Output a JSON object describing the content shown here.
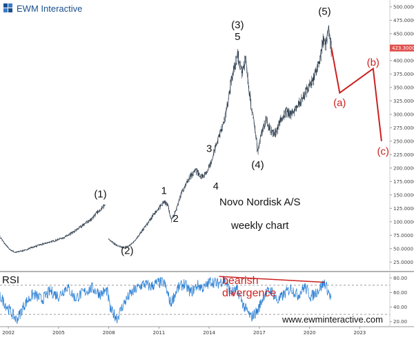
{
  "brand": {
    "name": "EWM Interactive"
  },
  "website": "www.ewminteractive.com",
  "chart_note": {
    "line1": "Novo Nordisk A/S",
    "line2": "weekly chart"
  },
  "colors": {
    "price": "#2f3f4f",
    "rsi": "#2a7fd4",
    "red": "#cc1f1f",
    "tag": "#e0514f",
    "brand": "#1a4f8c"
  },
  "current_price": {
    "value": 423.3,
    "label": "423.3000"
  },
  "chart_data": [
    {
      "type": "line",
      "name": "price",
      "title": "",
      "xlabel": "",
      "ylabel": "",
      "grid": false,
      "x_ticks": [
        "2002",
        "2005",
        "2008",
        "2011",
        "2014",
        "2017",
        "2020",
        "2023"
      ],
      "y_ticks": [
        "25.0000",
        "50.0000",
        "75.0000",
        "100.0000",
        "125.0000",
        "150.0000",
        "175.0000",
        "200.0000",
        "225.0000",
        "250.0000",
        "275.0000",
        "300.0000",
        "325.0000",
        "350.0000",
        "375.0000",
        "400.0000",
        "425.0000",
        "450.0000",
        "475.0000",
        "500.0000"
      ],
      "ylim": [
        10,
        505
      ],
      "xlim": [
        2001.5,
        2024.8
      ],
      "series": [
        {
          "segment": 1,
          "x": [
            2001.5,
            2001.8,
            2002.1,
            2002.4,
            2002.7,
            2003.0,
            2003.4,
            2003.8,
            2004.2,
            2004.6,
            2005.0,
            2005.4,
            2005.8,
            2006.2,
            2006.6,
            2007.0,
            2007.3,
            2007.6,
            2007.8
          ],
          "y": [
            72,
            58,
            48,
            43,
            45,
            47,
            52,
            56,
            60,
            63,
            67,
            72,
            79,
            88,
            97,
            106,
            117,
            126,
            130
          ]
        },
        {
          "segment": 2,
          "x": [
            2008.0,
            2008.3,
            2008.6,
            2008.9,
            2009.2,
            2009.5,
            2009.8,
            2010.1,
            2010.4,
            2010.7,
            2011.0,
            2011.3,
            2011.55,
            2011.75,
            2012.0,
            2012.3,
            2012.6,
            2012.9,
            2013.2,
            2013.5,
            2013.8,
            2014.1,
            2014.4,
            2014.7,
            2015.0,
            2015.2,
            2015.5,
            2015.7,
            2015.95,
            2016.2,
            2016.45,
            2016.65,
            2016.8,
            2016.9,
            2017.1,
            2017.4,
            2017.7,
            2018.0,
            2018.3,
            2018.6,
            2018.9,
            2019.2,
            2019.5,
            2019.8,
            2020.1,
            2020.35,
            2020.6,
            2020.85,
            2021.0,
            2021.15,
            2021.3
          ],
          "y": [
            68,
            60,
            54,
            52,
            55,
            63,
            75,
            88,
            100,
            115,
            125,
            138,
            130,
            102,
            120,
            150,
            170,
            185,
            196,
            185,
            188,
            210,
            240,
            268,
            300,
            340,
            390,
            412,
            380,
            400,
            330,
            288,
            262,
            226,
            262,
            290,
            268,
            265,
            292,
            305,
            300,
            310,
            325,
            342,
            355,
            375,
            400,
            440,
            430,
            458,
            423
          ]
        }
      ],
      "annotations": [
        {
          "text": "(1)",
          "x": 2007.5,
          "y": 145,
          "color": "black"
        },
        {
          "text": "(2)",
          "x": 2009.1,
          "y": 40,
          "color": "black"
        },
        {
          "text": "1",
          "x": 2011.3,
          "y": 152,
          "color": "black"
        },
        {
          "text": "2",
          "x": 2012.0,
          "y": 100,
          "color": "black"
        },
        {
          "text": "3",
          "x": 2014.0,
          "y": 230,
          "color": "black"
        },
        {
          "text": "4",
          "x": 2014.4,
          "y": 160,
          "color": "black"
        },
        {
          "text": "(3)",
          "x": 2015.7,
          "y": 460,
          "color": "black"
        },
        {
          "text": "5",
          "x": 2015.7,
          "y": 438,
          "color": "black"
        },
        {
          "text": "(4)",
          "x": 2016.9,
          "y": 200,
          "color": "black"
        },
        {
          "text": "(5)",
          "x": 2020.9,
          "y": 485,
          "color": "black"
        },
        {
          "text": "(a)",
          "x": 2021.8,
          "y": 315,
          "color": "red"
        },
        {
          "text": "(b)",
          "x": 2023.8,
          "y": 390,
          "color": "red"
        },
        {
          "text": "(c)",
          "x": 2024.4,
          "y": 225,
          "color": "red"
        }
      ],
      "projection": {
        "x": [
          2021.3,
          2021.8,
          2023.8,
          2024.3
        ],
        "y": [
          425,
          340,
          385,
          250
        ]
      }
    },
    {
      "type": "line",
      "name": "RSI",
      "title": "RSI",
      "xlabel": "",
      "ylabel": "",
      "grid": false,
      "y_ticks": [
        "20.00",
        "40.00",
        "60.00",
        "80.00"
      ],
      "ylim": [
        15,
        85
      ],
      "reference_lines": [
        70,
        30
      ],
      "xlim": [
        2001.5,
        2024.8
      ],
      "x": [
        2001.5,
        2002.0,
        2002.5,
        2003.0,
        2003.5,
        2004.0,
        2004.5,
        2005.0,
        2005.5,
        2006.0,
        2006.5,
        2007.0,
        2007.5,
        2007.9,
        2008.1,
        2008.5,
        2008.9,
        2009.3,
        2009.7,
        2010.1,
        2010.5,
        2010.9,
        2011.3,
        2011.7,
        2012.1,
        2012.5,
        2012.9,
        2013.3,
        2013.7,
        2014.1,
        2014.5,
        2014.9,
        2015.3,
        2015.7,
        2016.1,
        2016.5,
        2016.9,
        2017.3,
        2017.7,
        2018.1,
        2018.5,
        2018.9,
        2019.3,
        2019.7,
        2020.1,
        2020.5,
        2020.9,
        2021.3
      ],
      "values": [
        55,
        38,
        22,
        45,
        58,
        50,
        62,
        55,
        68,
        52,
        60,
        66,
        58,
        63,
        36,
        25,
        45,
        58,
        66,
        72,
        68,
        73,
        74,
        45,
        65,
        72,
        60,
        70,
        66,
        76,
        72,
        78,
        60,
        63,
        40,
        26,
        35,
        58,
        63,
        48,
        58,
        66,
        56,
        68,
        54,
        63,
        74,
        51
      ],
      "annotations": [
        {
          "text": "bearish",
          "color": "red"
        },
        {
          "text": "divergence",
          "color": "red"
        }
      ],
      "divergence_line": {
        "x": [
          2014.6,
          2020.9
        ],
        "y": [
          82,
          74
        ]
      }
    }
  ]
}
